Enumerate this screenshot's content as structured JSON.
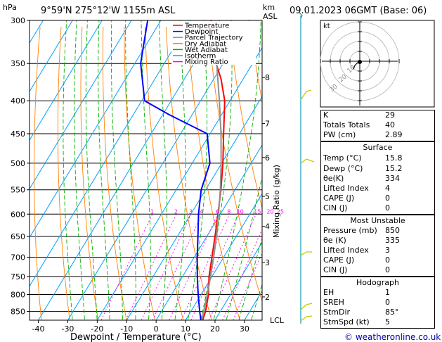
{
  "header": {
    "units_left": "hPa",
    "location": "9°59'N  275°12'W  1155m  ASL",
    "units_right_1": "km",
    "units_right_2": "ASL",
    "valid": "09.01.2023  06GMT  (Base: 06)"
  },
  "axis": {
    "xlabel": "Dewpoint / Temperature (°C)",
    "ylabel_right": "Mixing Ratio (g/kg)",
    "lcl_label": "LCL"
  },
  "legend": [
    {
      "label": "Temperature",
      "color": "#ff0000"
    },
    {
      "label": "Dewpoint",
      "color": "#0000ff"
    },
    {
      "label": "Parcel Trajectory",
      "color": "#909090"
    },
    {
      "label": "Dry Adiabat",
      "color": "#ff8000"
    },
    {
      "label": "Wet Adiabat",
      "color": "#00b000"
    },
    {
      "label": "Isotherm",
      "color": "#00a0ff"
    },
    {
      "label": "Mixing Ratio",
      "color": "#ff00ff"
    }
  ],
  "chart_data": {
    "type": "line",
    "title": "",
    "pressure_levels": [
      300,
      350,
      400,
      450,
      500,
      550,
      600,
      650,
      700,
      750,
      800,
      850
    ],
    "x_ticks": [
      -40,
      -30,
      -20,
      -10,
      0,
      10,
      20,
      30
    ],
    "xlim": [
      -43,
      36
    ],
    "skew": 1.0,
    "km_ticks": [
      {
        "label": "8",
        "p": 368
      },
      {
        "label": "7",
        "p": 434
      },
      {
        "label": "6",
        "p": 490
      },
      {
        "label": "5",
        "p": 563
      },
      {
        "label": "4",
        "p": 627
      },
      {
        "label": "3",
        "p": 713
      },
      {
        "label": "2",
        "p": 807
      }
    ],
    "mixing_ratio_labels": [
      "1",
      "2",
      "3",
      "4",
      "6",
      "8",
      "10",
      "15",
      "20",
      "25"
    ],
    "mixing_ratio_values": [
      1,
      2,
      3,
      4,
      6,
      8,
      10,
      15,
      20,
      25
    ],
    "series": [
      {
        "name": "Temperature",
        "color": "#ff0000",
        "p": [
          877,
          850,
          800,
          750,
          700,
          650,
          600,
          550,
          500,
          450,
          400,
          370,
          350,
          330,
          300
        ],
        "t": [
          15.8,
          15.0,
          12.5,
          9.0,
          6.0,
          2.8,
          -0.8,
          -4.8,
          -9.6,
          -15.4,
          -21.8,
          -27.5,
          -32.4,
          -37.5,
          -43.0
        ]
      },
      {
        "name": "Dewpoint",
        "color": "#0000ff",
        "p": [
          877,
          850,
          800,
          750,
          700,
          650,
          600,
          550,
          500,
          450,
          420,
          400,
          350,
          330,
          300
        ],
        "t": [
          15.2,
          13.0,
          9.0,
          5.0,
          1.0,
          -3.0,
          -7.4,
          -11.5,
          -14.0,
          -21.0,
          -38.0,
          -49.0,
          -58.0,
          -60.5,
          -64.5
        ]
      },
      {
        "name": "Parcel Trajectory",
        "color": "#909090",
        "p": [
          877,
          850,
          800,
          750,
          700,
          650,
          600,
          550,
          500,
          450,
          400,
          350,
          300
        ],
        "t": [
          15.5,
          14.4,
          12.1,
          9.5,
          6.6,
          3.3,
          -0.6,
          -5.0,
          -10.2,
          -16.3,
          -23.6,
          -32.2,
          -42.8
        ]
      }
    ]
  },
  "hodograph": {
    "label": "kt",
    "ring_labels": [
      "10",
      "20",
      "30"
    ]
  },
  "indices": {
    "top": [
      {
        "label": "K",
        "value": "29"
      },
      {
        "label": "Totals Totals",
        "value": "40"
      },
      {
        "label": "PW (cm)",
        "value": "2.89"
      }
    ],
    "surface_title": "Surface",
    "surface": [
      {
        "label": "Temp (°C)",
        "value": "15.8"
      },
      {
        "label": "Dewp (°C)",
        "value": "15.2"
      },
      {
        "label": "θe(K)",
        "value": "334"
      },
      {
        "label": "Lifted Index",
        "value": "4"
      },
      {
        "label": "CAPE (J)",
        "value": "0"
      },
      {
        "label": "CIN (J)",
        "value": "0"
      }
    ],
    "unstable_title": "Most Unstable",
    "unstable": [
      {
        "label": "Pressure (mb)",
        "value": "850"
      },
      {
        "label": "θe (K)",
        "value": "335"
      },
      {
        "label": "Lifted Index",
        "value": "3"
      },
      {
        "label": "CAPE (J)",
        "value": "0"
      },
      {
        "label": "CIN (J)",
        "value": "0"
      }
    ],
    "hodograph_title": "Hodograph",
    "hodo": [
      {
        "label": "EH",
        "value": "1"
      },
      {
        "label": "SREH",
        "value": "0"
      },
      {
        "label": "StmDir",
        "value": "85°"
      },
      {
        "label": "StmSpd (kt)",
        "value": "5"
      }
    ]
  },
  "footer": {
    "copyright": "© weatheronline.co.uk"
  }
}
